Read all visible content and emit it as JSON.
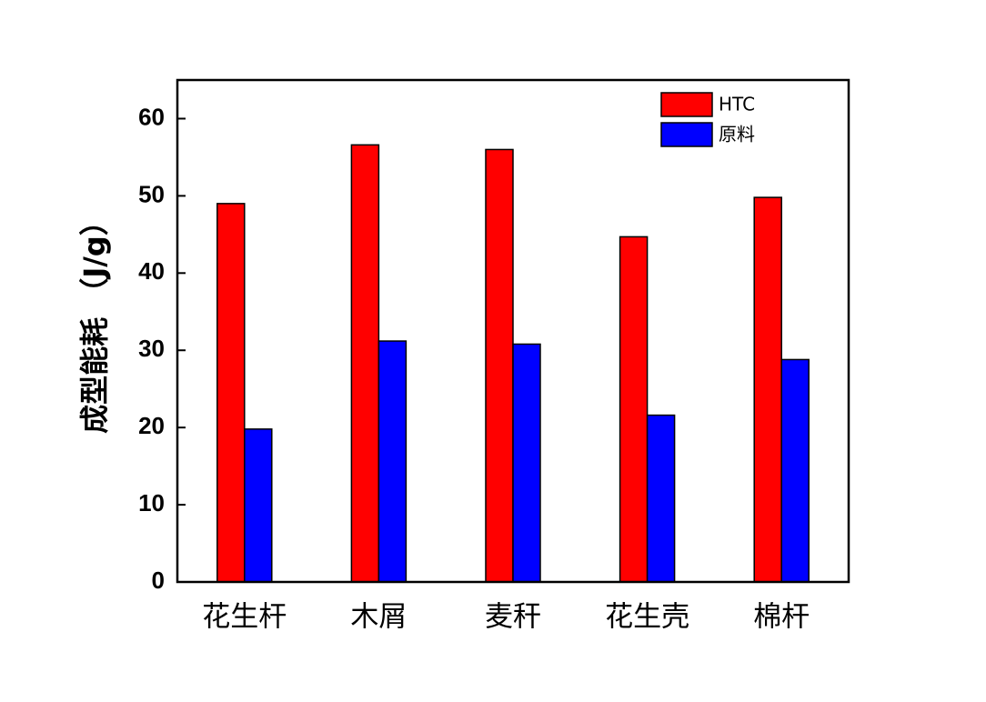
{
  "chart_data": {
    "type": "bar",
    "y_label": "成型能耗 （J/g）",
    "categories": [
      "花生杆",
      "木屑",
      "麦秆",
      "花生壳",
      "棉杆"
    ],
    "series": [
      {
        "name": "HTC",
        "color": "#ff0000",
        "values": [
          49.0,
          56.6,
          56.0,
          44.7,
          49.8
        ]
      },
      {
        "name": "原料",
        "color": "#0000ff",
        "values": [
          19.8,
          31.2,
          30.8,
          21.6,
          28.8
        ]
      }
    ],
    "ylim": [
      0,
      65
    ],
    "yticks": [
      0,
      10,
      20,
      30,
      40,
      50,
      60
    ],
    "legend": "top-right"
  }
}
